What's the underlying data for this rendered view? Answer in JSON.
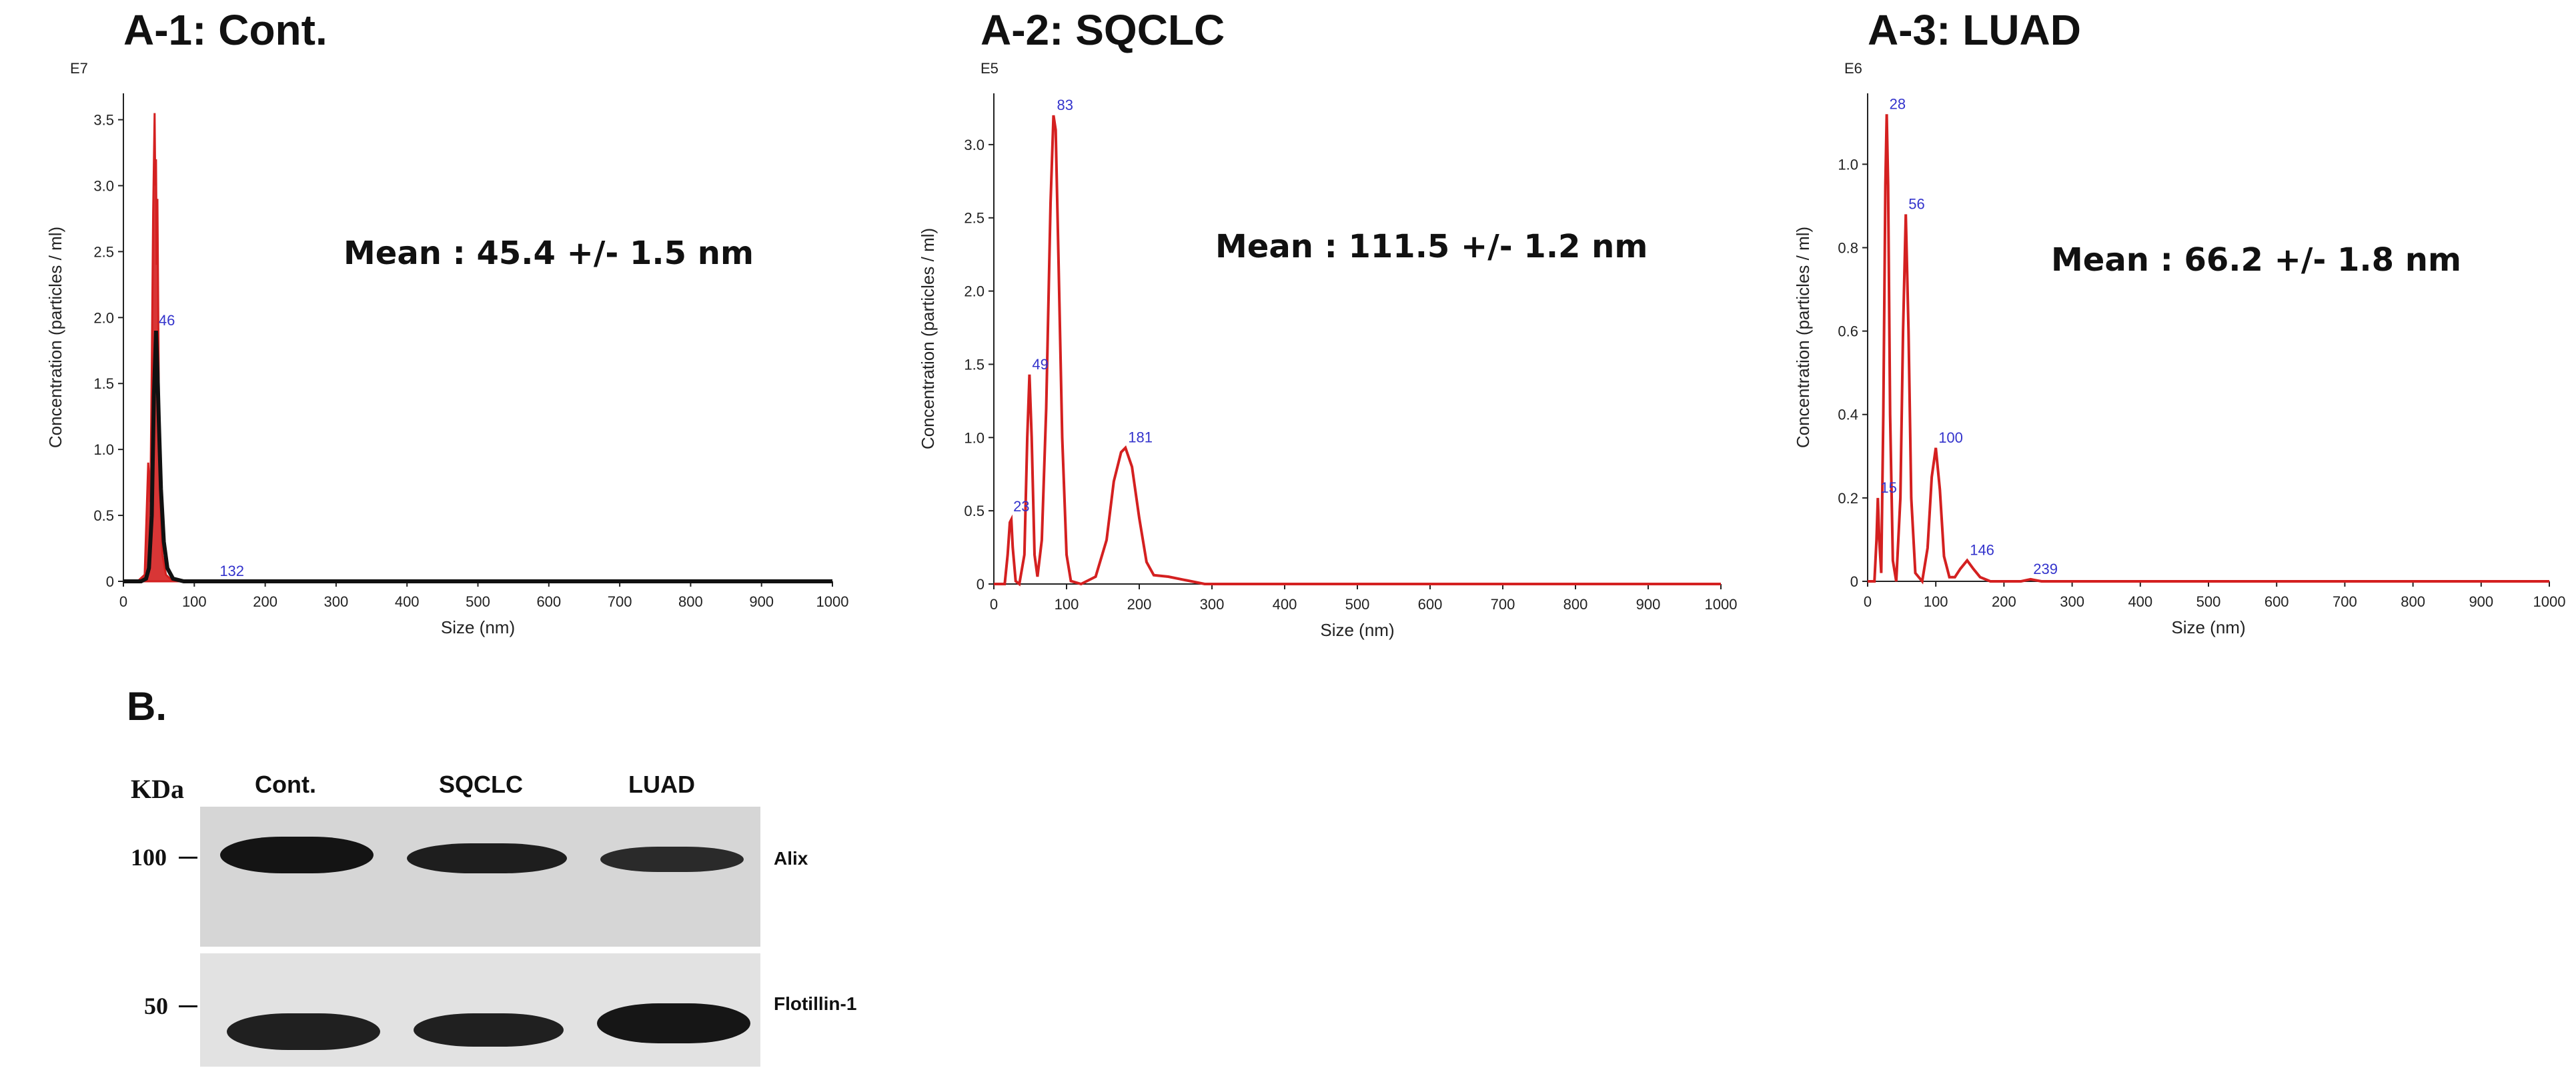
{
  "panels": [
    {
      "title": "A-1: Cont.",
      "mean": "Mean : 45.4 +/- 1.5 nm"
    },
    {
      "title": "A-2: SQCLC",
      "mean": "Mean : 111.5 +/- 1.2 nm"
    },
    {
      "title": "A-3: LUAD",
      "mean": "Mean : 66.2 +/- 1.8 nm"
    }
  ],
  "chart_data": [
    {
      "type": "line",
      "title": "A-1: Cont.",
      "annotation": "Mean : 45.4 +/- 1.5 nm",
      "xlabel": "Size (nm)",
      "ylabel": "Concentration (particles / ml)",
      "y_multiplier": "E7",
      "xlim": [
        0,
        1000
      ],
      "ylim": [
        0,
        3.7
      ],
      "xticks": [
        0,
        100,
        200,
        300,
        400,
        500,
        600,
        700,
        800,
        900,
        1000
      ],
      "yticks": [
        0,
        0.5,
        1.0,
        1.5,
        2.0,
        2.5,
        3.0,
        3.5
      ],
      "ytick_labels": [
        "0",
        "0.5",
        "1.0",
        "1.5",
        "2.0",
        "2.5",
        "3.0",
        "3.5"
      ],
      "grid": false,
      "series_color": "#d42020",
      "secondary_color": "#111111",
      "peaks": [
        {
          "x": 46,
          "y": 1.9,
          "label": "46"
        },
        {
          "x": 132,
          "y": 0.0,
          "label": "132"
        }
      ],
      "red_curve": [
        [
          0,
          0
        ],
        [
          20,
          0
        ],
        [
          30,
          0.05
        ],
        [
          35,
          0.9
        ],
        [
          38,
          0.6
        ],
        [
          40,
          1.6
        ],
        [
          42,
          2.8
        ],
        [
          44,
          3.55
        ],
        [
          45,
          3.0
        ],
        [
          46,
          3.2
        ],
        [
          47,
          2.4
        ],
        [
          48,
          2.9
        ],
        [
          50,
          1.4
        ],
        [
          52,
          0.6
        ],
        [
          55,
          0.2
        ],
        [
          60,
          0.05
        ],
        [
          70,
          0
        ],
        [
          1000,
          0
        ]
      ],
      "black_curve": [
        [
          0,
          0
        ],
        [
          25,
          0
        ],
        [
          32,
          0.02
        ],
        [
          36,
          0.1
        ],
        [
          40,
          0.5
        ],
        [
          43,
          1.4
        ],
        [
          46,
          1.9
        ],
        [
          48,
          1.6
        ],
        [
          50,
          1.2
        ],
        [
          53,
          0.7
        ],
        [
          57,
          0.3
        ],
        [
          62,
          0.1
        ],
        [
          70,
          0.02
        ],
        [
          85,
          0
        ],
        [
          1000,
          0
        ]
      ]
    },
    {
      "type": "line",
      "title": "A-2: SQCLC",
      "annotation": "Mean : 111.5 +/- 1.2 nm",
      "xlabel": "Size (nm)",
      "ylabel": "Concentration (particles / ml)",
      "y_multiplier": "E5",
      "xlim": [
        0,
        1000
      ],
      "ylim": [
        0,
        3.35
      ],
      "xticks": [
        0,
        100,
        200,
        300,
        400,
        500,
        600,
        700,
        800,
        900,
        1000
      ],
      "yticks": [
        0,
        0.5,
        1.0,
        1.5,
        2.0,
        2.5,
        3.0
      ],
      "ytick_labels": [
        "0",
        "0.5",
        "1.0",
        "1.5",
        "2.0",
        "2.5",
        "3.0"
      ],
      "grid": false,
      "series_color": "#d42020",
      "peaks": [
        {
          "x": 23,
          "y": 0.46,
          "label": "23"
        },
        {
          "x": 49,
          "y": 1.43,
          "label": "49"
        },
        {
          "x": 83,
          "y": 3.2,
          "label": "83"
        },
        {
          "x": 181,
          "y": 0.93,
          "label": "181"
        }
      ],
      "red_curve": [
        [
          0,
          0
        ],
        [
          15,
          0
        ],
        [
          19,
          0.2
        ],
        [
          22,
          0.42
        ],
        [
          24,
          0.44
        ],
        [
          26,
          0.25
        ],
        [
          30,
          0.02
        ],
        [
          35,
          0
        ],
        [
          42,
          0.2
        ],
        [
          46,
          1.0
        ],
        [
          49,
          1.43
        ],
        [
          52,
          1.0
        ],
        [
          56,
          0.2
        ],
        [
          60,
          0.05
        ],
        [
          66,
          0.3
        ],
        [
          72,
          1.2
        ],
        [
          78,
          2.6
        ],
        [
          82,
          3.2
        ],
        [
          85,
          3.1
        ],
        [
          89,
          2.2
        ],
        [
          94,
          1.0
        ],
        [
          100,
          0.2
        ],
        [
          106,
          0.02
        ],
        [
          120,
          0
        ],
        [
          140,
          0.05
        ],
        [
          155,
          0.3
        ],
        [
          165,
          0.7
        ],
        [
          175,
          0.9
        ],
        [
          181,
          0.93
        ],
        [
          190,
          0.8
        ],
        [
          200,
          0.45
        ],
        [
          210,
          0.15
        ],
        [
          220,
          0.06
        ],
        [
          240,
          0.05
        ],
        [
          260,
          0.03
        ],
        [
          290,
          0
        ],
        [
          1000,
          0
        ]
      ]
    },
    {
      "type": "line",
      "title": "A-3: LUAD",
      "annotation": "Mean : 66.2 +/- 1.8 nm",
      "xlabel": "Size (nm)",
      "ylabel": "Concentration (particles / ml)",
      "y_multiplier": "E6",
      "xlim": [
        0,
        1000
      ],
      "ylim": [
        0,
        1.17
      ],
      "xticks": [
        0,
        100,
        200,
        300,
        400,
        500,
        600,
        700,
        800,
        900,
        1000
      ],
      "yticks": [
        0,
        0.2,
        0.4,
        0.6,
        0.8,
        1.0
      ],
      "ytick_labels": [
        "0",
        "0.2",
        "0.4",
        "0.6",
        "0.8",
        "1.0"
      ],
      "grid": false,
      "series_color": "#d42020",
      "peaks": [
        {
          "x": 15,
          "y": 0.2,
          "label": "15"
        },
        {
          "x": 28,
          "y": 1.12,
          "label": "28"
        },
        {
          "x": 56,
          "y": 0.88,
          "label": "56"
        },
        {
          "x": 100,
          "y": 0.32,
          "label": "100"
        },
        {
          "x": 146,
          "y": 0.05,
          "label": "146"
        },
        {
          "x": 239,
          "y": 0.005,
          "label": "239"
        }
      ],
      "red_curve": [
        [
          0,
          0
        ],
        [
          10,
          0
        ],
        [
          13,
          0.1
        ],
        [
          15,
          0.2
        ],
        [
          17,
          0.1
        ],
        [
          20,
          0.02
        ],
        [
          23,
          0.4
        ],
        [
          26,
          0.95
        ],
        [
          28,
          1.12
        ],
        [
          30,
          0.95
        ],
        [
          33,
          0.4
        ],
        [
          37,
          0.05
        ],
        [
          42,
          0
        ],
        [
          48,
          0.2
        ],
        [
          52,
          0.6
        ],
        [
          56,
          0.88
        ],
        [
          60,
          0.6
        ],
        [
          64,
          0.2
        ],
        [
          70,
          0.02
        ],
        [
          80,
          0
        ],
        [
          88,
          0.08
        ],
        [
          94,
          0.25
        ],
        [
          100,
          0.32
        ],
        [
          106,
          0.22
        ],
        [
          112,
          0.06
        ],
        [
          120,
          0.01
        ],
        [
          128,
          0.01
        ],
        [
          136,
          0.03
        ],
        [
          146,
          0.05
        ],
        [
          155,
          0.03
        ],
        [
          165,
          0.01
        ],
        [
          180,
          0
        ],
        [
          225,
          0
        ],
        [
          239,
          0.005
        ],
        [
          255,
          0
        ],
        [
          1000,
          0
        ]
      ]
    }
  ],
  "blot": {
    "section_label": "B.",
    "unit_label": "KDa",
    "lanes": [
      "Cont.",
      "SQCLC",
      "LUAD"
    ],
    "markers": [
      "100",
      "50"
    ],
    "bands": [
      "Alix",
      "Flotillin-1"
    ]
  }
}
